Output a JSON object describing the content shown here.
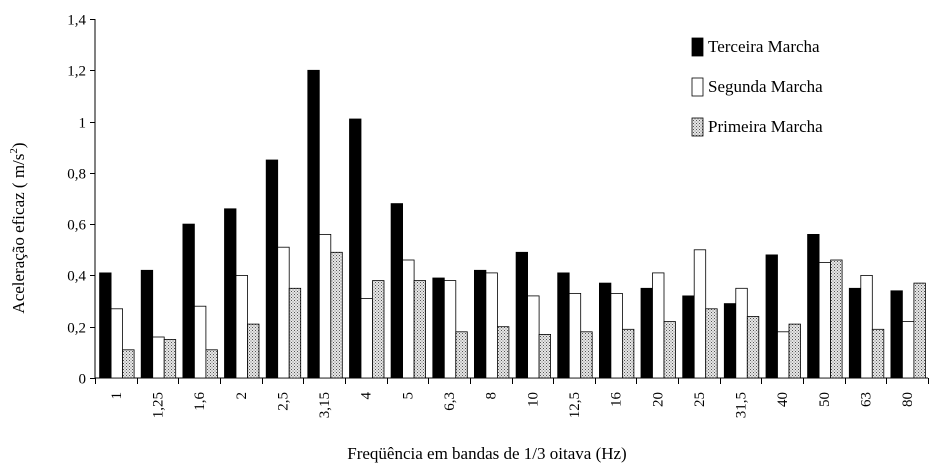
{
  "chart_data": {
    "type": "bar",
    "title": "",
    "xlabel": "Freqüência em bandas de 1/3 oitava (Hz)",
    "ylabel": "Aceleração eficaz ( m/s²)",
    "ylabel_parts": {
      "main": "Aceleração eficaz ( m/s",
      "sup": "2",
      "end": ")"
    },
    "ylim": [
      0,
      1.4
    ],
    "yticks": [
      {
        "value": 0,
        "label": "0"
      },
      {
        "value": 0.2,
        "label": "0,2"
      },
      {
        "value": 0.4,
        "label": "0,4"
      },
      {
        "value": 0.6,
        "label": "0,6"
      },
      {
        "value": 0.8,
        "label": "0,8"
      },
      {
        "value": 1.0,
        "label": "1"
      },
      {
        "value": 1.2,
        "label": "1,2"
      },
      {
        "value": 1.4,
        "label": "1,4"
      }
    ],
    "grid": false,
    "legend_position": "top-right",
    "categories": [
      "1",
      "1,25",
      "1,6",
      "2",
      "2,5",
      "3,15",
      "4",
      "5",
      "6,3",
      "8",
      "10",
      "12,5",
      "16",
      "20",
      "25",
      "31,5",
      "40",
      "50",
      "63",
      "80"
    ],
    "series": [
      {
        "name": "Terceira Marcha",
        "fill": "solid-black",
        "values": [
          0.41,
          0.42,
          0.6,
          0.66,
          0.85,
          1.2,
          1.01,
          0.68,
          0.39,
          0.42,
          0.49,
          0.41,
          0.37,
          0.35,
          0.32,
          0.29,
          0.48,
          0.56,
          0.35,
          0.34
        ]
      },
      {
        "name": "Segunda Marcha",
        "fill": "white",
        "values": [
          0.27,
          0.16,
          0.28,
          0.4,
          0.51,
          0.56,
          0.31,
          0.46,
          0.38,
          0.41,
          0.32,
          0.33,
          0.33,
          0.41,
          0.5,
          0.35,
          0.18,
          0.45,
          0.4,
          0.22
        ]
      },
      {
        "name": "Primeira Marcha",
        "fill": "dotted-gray",
        "values": [
          0.11,
          0.15,
          0.11,
          0.21,
          0.35,
          0.49,
          0.38,
          0.38,
          0.18,
          0.2,
          0.17,
          0.18,
          0.19,
          0.22,
          0.27,
          0.24,
          0.21,
          0.46,
          0.19,
          0.37
        ]
      }
    ]
  }
}
